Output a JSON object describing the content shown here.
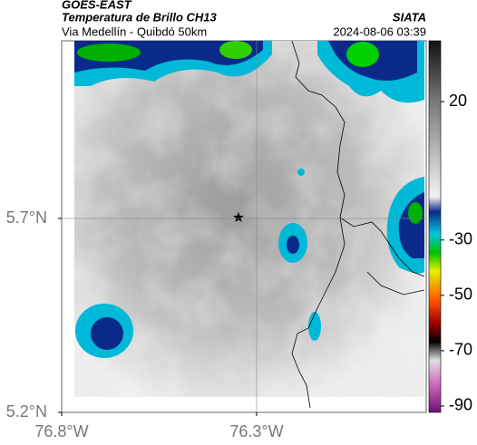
{
  "header": {
    "title": "GOES-EAST",
    "subtitle": "Temperatura de Brillo CH13",
    "source": "SIATA",
    "region": "Via Medellín - Quibdó 50km",
    "timestamp": "2024-08-06 03:39"
  },
  "chart_data": {
    "type": "map",
    "xlim": [
      -76.8,
      -75.865
    ],
    "ylim": [
      5.2,
      6.158
    ],
    "xticks": [
      {
        "value": -76.8,
        "label": "76.8°W"
      },
      {
        "value": -76.3,
        "label": "76.3°W"
      }
    ],
    "yticks": [
      {
        "value": 5.7,
        "label": "5.7°N"
      },
      {
        "value": 5.2,
        "label": "5.2°N"
      }
    ],
    "grid": true,
    "colorbar": {
      "lim": [
        -92.3,
        42
      ],
      "ticks": [
        20,
        -30,
        -50,
        -70,
        -90
      ]
    }
  }
}
